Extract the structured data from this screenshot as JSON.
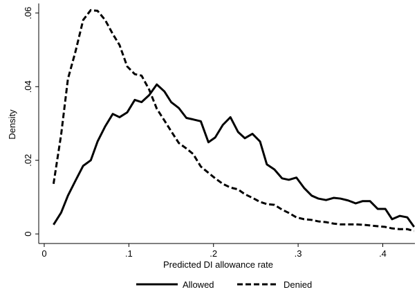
{
  "chart_data": {
    "type": "line",
    "xlabel": "Predicted DI allowance rate",
    "ylabel": "Density",
    "x": [
      0.011,
      0.02,
      0.028,
      0.037,
      0.046,
      0.055,
      0.063,
      0.072,
      0.081,
      0.089,
      0.098,
      0.107,
      0.115,
      0.124,
      0.133,
      0.142,
      0.15,
      0.159,
      0.168,
      0.176,
      0.185,
      0.194,
      0.202,
      0.211,
      0.22,
      0.229,
      0.237,
      0.246,
      0.255,
      0.263,
      0.272,
      0.281,
      0.289,
      0.298,
      0.307,
      0.316,
      0.324,
      0.333,
      0.342,
      0.35,
      0.359,
      0.368,
      0.376,
      0.385,
      0.394,
      0.403,
      0.411,
      0.42,
      0.429,
      0.437
    ],
    "series": [
      {
        "name": "Allowed",
        "color": "#000000",
        "dash": "solid",
        "values": [
          0.0025,
          0.0058,
          0.0104,
          0.0145,
          0.0185,
          0.02,
          0.0251,
          0.0292,
          0.0326,
          0.0317,
          0.033,
          0.0364,
          0.0358,
          0.0377,
          0.0406,
          0.0387,
          0.0358,
          0.0342,
          0.0315,
          0.0311,
          0.0306,
          0.0249,
          0.0262,
          0.0296,
          0.0317,
          0.0277,
          0.026,
          0.0272,
          0.0251,
          0.0189,
          0.0175,
          0.0151,
          0.0147,
          0.0153,
          0.0125,
          0.0104,
          0.0096,
          0.0092,
          0.0098,
          0.0096,
          0.0091,
          0.0083,
          0.0089,
          0.0089,
          0.0068,
          0.0068,
          0.004,
          0.0049,
          0.0045,
          0.0019
        ]
      },
      {
        "name": "Denied",
        "color": "#000000",
        "dash": "dashed",
        "values": [
          0.0136,
          0.027,
          0.0421,
          0.0496,
          0.0581,
          0.0608,
          0.0606,
          0.0581,
          0.0543,
          0.0513,
          0.0455,
          0.0434,
          0.043,
          0.0392,
          0.034,
          0.0308,
          0.0279,
          0.0247,
          0.0232,
          0.0217,
          0.0183,
          0.0166,
          0.0151,
          0.0136,
          0.0126,
          0.0121,
          0.0108,
          0.0098,
          0.0087,
          0.0081,
          0.0079,
          0.0066,
          0.0057,
          0.0045,
          0.004,
          0.0038,
          0.0034,
          0.0032,
          0.0028,
          0.0026,
          0.0026,
          0.0026,
          0.0025,
          0.0023,
          0.0021,
          0.0019,
          0.0015,
          0.0013,
          0.0013,
          0.0008
        ]
      }
    ],
    "xlim": [
      -0.0065,
      0.438
    ],
    "xticks": [
      0,
      {
        "value": 0.1,
        "label": ".1"
      },
      {
        "value": 0.2,
        "label": ".2"
      },
      {
        "value": 0.3,
        "label": ".3"
      },
      {
        "value": 0.4,
        "label": ".4"
      }
    ],
    "ylim": [
      -0.0026,
      0.0626
    ],
    "yticks": [
      0,
      {
        "value": 0.02,
        "label": ".02"
      },
      {
        "value": 0.04,
        "label": ".04"
      },
      {
        "value": 0.06,
        "label": ".06"
      }
    ],
    "grid": false,
    "legend": "bottom"
  }
}
